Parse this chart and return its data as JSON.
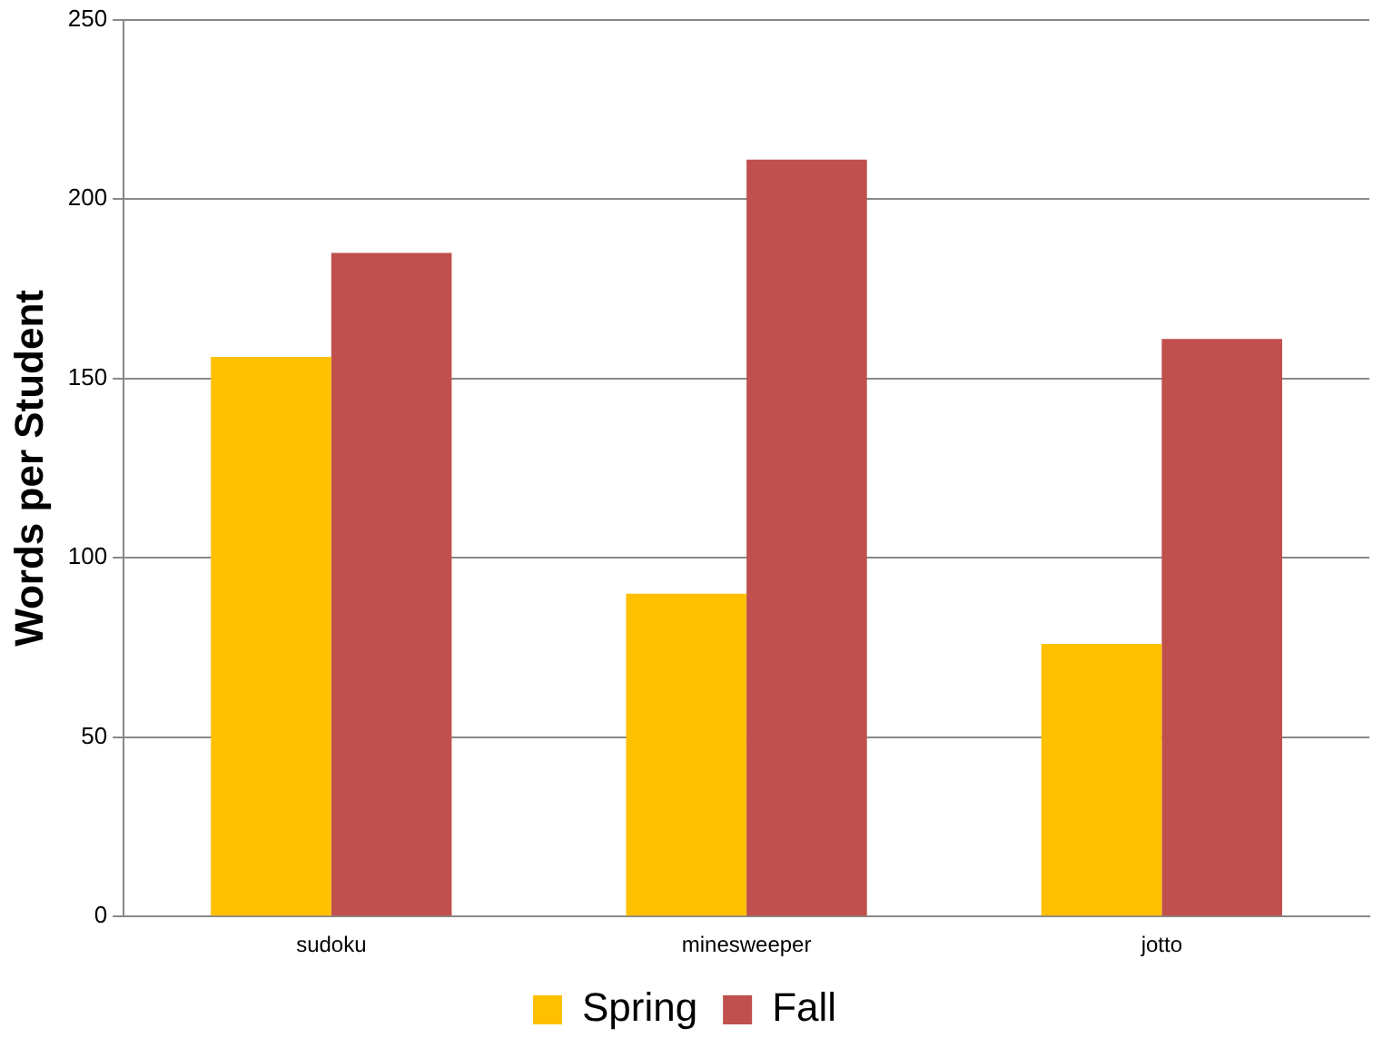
{
  "chart_data": {
    "type": "bar",
    "ylabel": "Words per Student",
    "categories": [
      "sudoku",
      "minesweeper",
      "jotto"
    ],
    "series": [
      {
        "name": "Spring",
        "color": "#ffc000",
        "values": [
          156,
          90,
          76
        ]
      },
      {
        "name": "Fall",
        "color": "#c0504d",
        "values": [
          185,
          211,
          161
        ]
      }
    ],
    "ylim": [
      0,
      250
    ],
    "yticks": [
      0,
      50,
      100,
      150,
      200,
      250
    ],
    "grid": "y",
    "legend": "bottom"
  }
}
